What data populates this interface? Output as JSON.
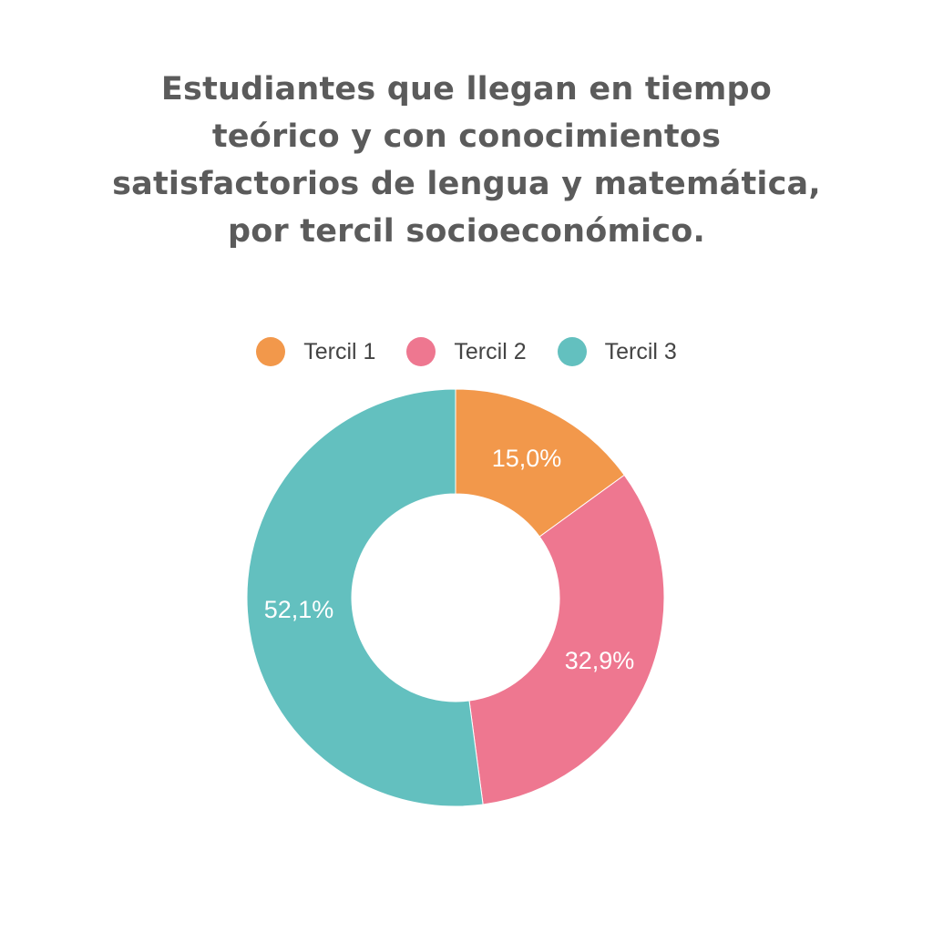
{
  "title_lines": [
    "Estudiantes que llegan en tiempo",
    "teórico y con conocimientos",
    "satisfactorios de lengua y matemática,",
    "por tercil socioeconómico."
  ],
  "legend": [
    {
      "label": "Tercil 1",
      "color": "#f2984b"
    },
    {
      "label": "Tercil 2",
      "color": "#ee7790"
    },
    {
      "label": "Tercil 3",
      "color": "#63c0bf"
    }
  ],
  "chart_data": {
    "type": "pie",
    "variant": "donut",
    "title": "Estudiantes que llegan en tiempo teórico y con conocimientos satisfactorios de lengua y matemática, por tercil socioeconómico.",
    "categories": [
      "Tercil 1",
      "Tercil 2",
      "Tercil 3"
    ],
    "values": [
      15.0,
      32.9,
      52.1
    ],
    "value_labels": [
      "15,0%",
      "32,9%",
      "52,1%"
    ],
    "colors": [
      "#f2984b",
      "#ee7790",
      "#63c0bf"
    ],
    "unit": "%",
    "legend_position": "top",
    "start_angle": "12 o'clock",
    "direction": "clockwise"
  }
}
